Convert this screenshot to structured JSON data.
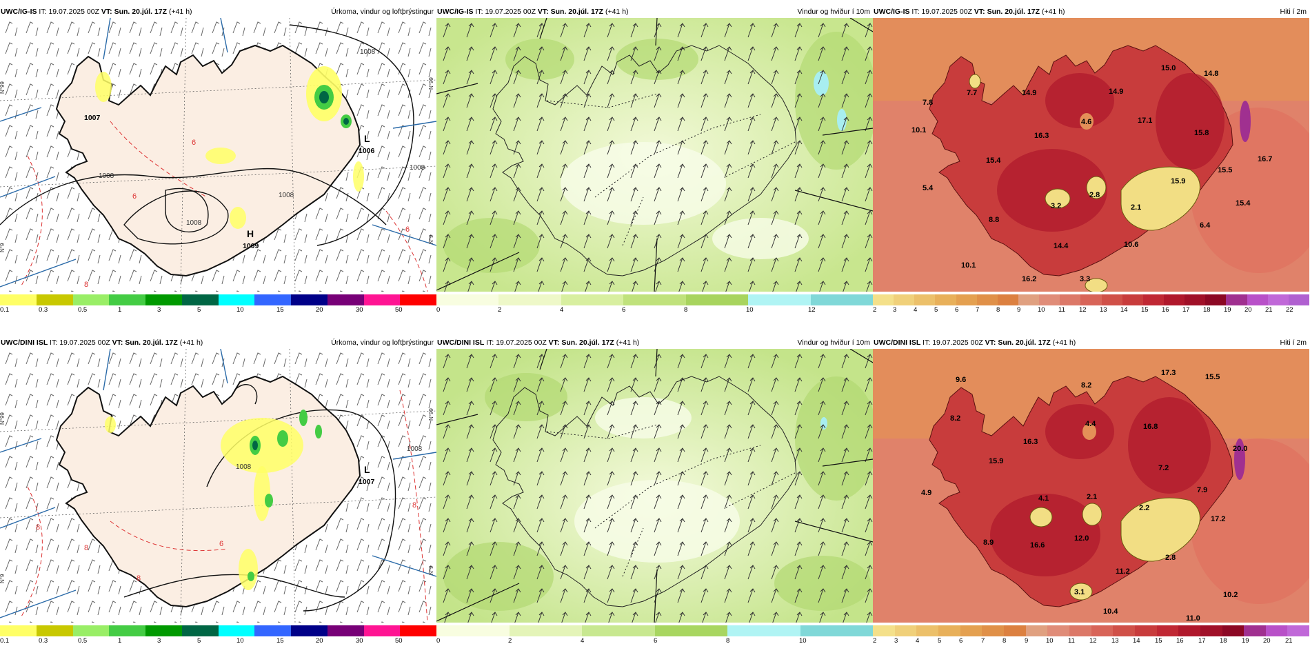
{
  "panels": [
    {
      "model": "UWC/IG-IS",
      "it_label": "IT:",
      "it": "19.07.2025 00Z",
      "vt_label": "VT:",
      "vt": "Sun. 20.júl. 17Z",
      "lead": "(+41 h)",
      "title": "Úrkoma, vindur og loftþrýstingur"
    },
    {
      "model": "UWC/IG-IS",
      "it_label": "IT:",
      "it": "19.07.2025 00Z",
      "vt_label": "VT:",
      "vt": "Sun. 20.júl. 17Z",
      "lead": "(+41 h)",
      "title": "Vindur og hviður í 10m"
    },
    {
      "model": "UWC/IG-IS",
      "it_label": "IT:",
      "it": "19.07.2025 00Z",
      "vt_label": "VT:",
      "vt": "Sun. 20.júl. 17Z",
      "lead": "(+41 h)",
      "title": "Hiti í 2m"
    },
    {
      "model": "UWC/DINI ISL",
      "it_label": "IT:",
      "it": "19.07.2025 00Z",
      "vt_label": "VT:",
      "vt": "Sun. 20.júl. 17Z",
      "lead": "(+41 h)",
      "title": "Úrkoma, vindur og loftþrýstingur"
    },
    {
      "model": "UWC/DINI ISL",
      "it_label": "IT:",
      "it": "19.07.2025 00Z",
      "vt_label": "VT:",
      "vt": "Sun. 20.júl. 17Z",
      "lead": "(+41 h)",
      "title": "Vindur og hviður í 10m"
    },
    {
      "model": "UWC/DINI ISL",
      "it_label": "IT:",
      "it": "19.07.2025 00Z",
      "vt_label": "VT:",
      "vt": "Sun. 20.júl. 17Z",
      "lead": "(+41 h)",
      "title": "Hiti í 2m"
    }
  ],
  "pressure_top": {
    "L": "L",
    "L_value": "1006",
    "H": "H",
    "H_value": "1009",
    "low2_value": "1007",
    "isobars": [
      "1008",
      "1008",
      "1008",
      "1008",
      "1008"
    ]
  },
  "pressure_bottom": {
    "L": "L",
    "L_value": "1007",
    "isobars": [
      "1008",
      "1008"
    ]
  },
  "isoline_6": "6",
  "isoline_8": "8",
  "lat_labels": [
    "N°99",
    "N°99",
    "N°9",
    "N°9"
  ],
  "precip_scale": {
    "labels": [
      "0.1",
      "0.3",
      "0.5",
      "1",
      "3",
      "5",
      "10",
      "15",
      "20",
      "30",
      "50"
    ],
    "colors": [
      "#ffff66",
      "#c8c800",
      "#99ee66",
      "#44cc44",
      "#009900",
      "#006644",
      "#00ffff",
      "#3366ff",
      "#000088",
      "#770077",
      "#ff1493",
      "#ff0000"
    ]
  },
  "wind_scale_top": {
    "labels": [
      "0",
      "2",
      "4",
      "6",
      "8",
      "10",
      "12"
    ],
    "colors": [
      "#f8fde0",
      "#eef8c8",
      "#d8efa0",
      "#c0e27c",
      "#a8d45e",
      "#b0f4f4",
      "#80d8d8"
    ]
  },
  "wind_scale_bottom": {
    "labels": [
      "0",
      "2",
      "4",
      "6",
      "8",
      "10"
    ],
    "colors": [
      "#f8fde0",
      "#e4f4b8",
      "#c8e890",
      "#a8d660",
      "#b0f4f4",
      "#80d8d8"
    ]
  },
  "temp_scale_top": {
    "labels": [
      "2",
      "3",
      "4",
      "5",
      "6",
      "7",
      "8",
      "9",
      "10",
      "11",
      "12",
      "13",
      "14",
      "15",
      "16",
      "17",
      "18",
      "19",
      "20",
      "21",
      "22"
    ],
    "colors": [
      "#f4e08a",
      "#f0d07a",
      "#ecc06a",
      "#e8b05a",
      "#e4a050",
      "#e09048",
      "#dc8040",
      "#e0a080",
      "#e08c78",
      "#dc7868",
      "#d86458",
      "#d05048",
      "#c83c3c",
      "#c02834",
      "#b0182c",
      "#a01028",
      "#8c0824",
      "#a03090",
      "#b850c8",
      "#c068d8",
      "#b060d0"
    ]
  },
  "temp_scale_bottom": {
    "labels": [
      "2",
      "3",
      "4",
      "5",
      "6",
      "7",
      "8",
      "9",
      "10",
      "11",
      "12",
      "13",
      "14",
      "15",
      "16",
      "17",
      "18",
      "19",
      "20",
      "21"
    ],
    "colors": [
      "#f4e08a",
      "#f0d07a",
      "#ecc06a",
      "#e8b05a",
      "#e4a050",
      "#e09048",
      "#dc8040",
      "#e0a080",
      "#e08c78",
      "#dc7868",
      "#d86458",
      "#d05048",
      "#c83c3c",
      "#c02834",
      "#b0182c",
      "#a01028",
      "#8c0824",
      "#a03090",
      "#b850c8",
      "#c068d8"
    ]
  },
  "temp_top_labels": [
    "15.0",
    "14.8",
    "7.8",
    "7.7",
    "14.9",
    "14.9",
    "4.6",
    "17.1",
    "15.8",
    "10.1",
    "16.3",
    "15.4",
    "15.9",
    "16.7",
    "15.5",
    "5.4",
    "2.8",
    "2.1",
    "3.2",
    "15.4",
    "8.8",
    "6.4",
    "10.6",
    "14.4",
    "10.1",
    "16.2",
    "3.3"
  ],
  "temp_bottom_labels": [
    "17.3",
    "15.5",
    "9.6",
    "8.2",
    "8.2",
    "4.4",
    "16.8",
    "16.3",
    "15.9",
    "20.0",
    "7.2",
    "4.9",
    "4.1",
    "2.1",
    "7.9",
    "2.2",
    "17.2",
    "8.9",
    "16.6",
    "12.0",
    "2.8",
    "11.2",
    "3.1",
    "10.2",
    "10.4",
    "11.0"
  ]
}
